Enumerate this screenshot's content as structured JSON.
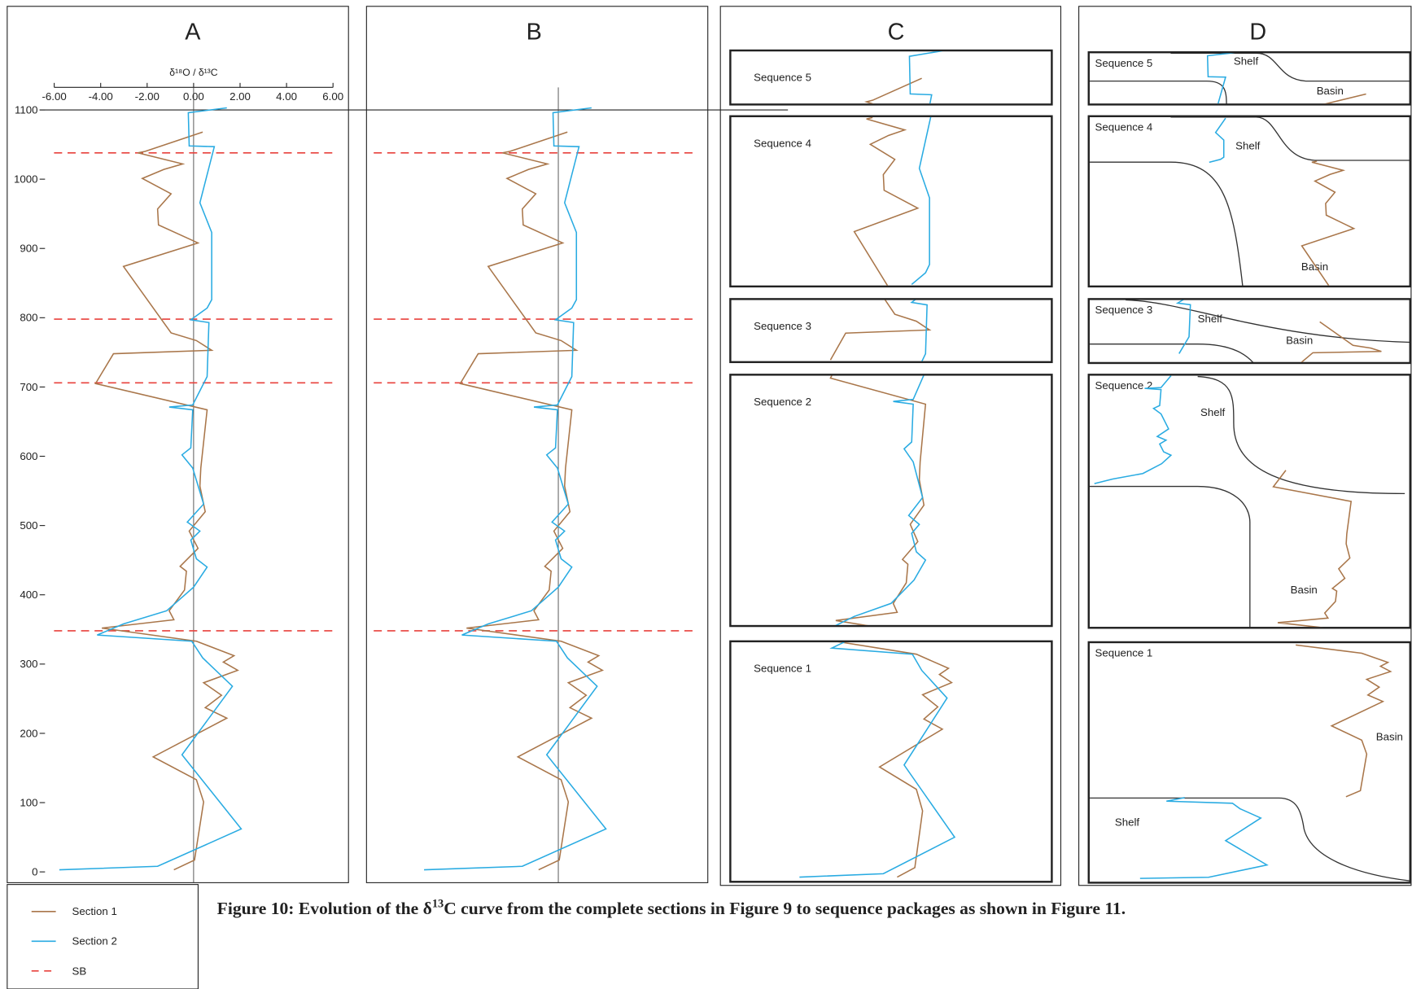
{
  "panels": [
    "A",
    "B",
    "C",
    "D"
  ],
  "chart_data": {
    "type": "line",
    "xlabel": "δ¹⁸O / δ¹³C",
    "xlim": [
      -6,
      6
    ],
    "xticks": [
      {
        "value": -6,
        "label": "-6.00"
      },
      {
        "value": -4,
        "label": "-4.00"
      },
      {
        "value": -2,
        "label": "-2.00"
      },
      {
        "value": 0,
        "label": "0.00"
      },
      {
        "value": 2,
        "label": "2.00"
      },
      {
        "value": 4,
        "label": "4.00"
      },
      {
        "value": 6,
        "label": "6.00"
      }
    ],
    "ylim": [
      0,
      1100
    ],
    "yticks": [
      0,
      100,
      200,
      300,
      400,
      500,
      600,
      700,
      800,
      900,
      1000,
      1100
    ],
    "series": [
      {
        "name": "Section 1",
        "color": "#a9764a",
        "x": [
          -0.85,
          0.04,
          0.43,
          0.12,
          -1.74,
          1.43,
          0.5,
          1.2,
          0.43,
          1.9,
          1.28,
          1.74,
          0.12,
          -3.95,
          -0.85,
          -1.05,
          -0.39,
          -0.31,
          -0.58,
          0.19,
          -0.19,
          0.5,
          0.27,
          0.31,
          0.58,
          -4.22,
          -3.45,
          0.78,
          0.12,
          -0.97,
          -3.02,
          0.19,
          -1.51,
          -1.55,
          -0.97,
          -2.21,
          -1.28,
          -0.47,
          -2.4,
          -2.09,
          0.39
        ],
        "values": [
          3,
          17,
          101,
          133,
          166,
          222,
          237,
          255,
          273,
          291,
          303,
          312,
          333,
          352,
          364,
          377,
          407,
          434,
          441,
          467,
          492,
          520,
          557,
          583,
          667,
          705,
          748,
          753,
          767,
          778,
          874,
          908,
          934,
          957,
          979,
          1001,
          1014,
          1022,
          1038,
          1040,
          1068
        ]
      },
      {
        "name": "Section 2",
        "color": "#29abe2",
        "x": [
          -5.78,
          -1.55,
          2.05,
          -0.5,
          1.67,
          0.39,
          -0.08,
          -4.15,
          -3.02,
          -1.16,
          0,
          0.58,
          0.12,
          -0.12,
          0.27,
          -0.27,
          0.43,
          -0.04,
          -0.5,
          -0.12,
          -0.04,
          -1.05,
          -0.04,
          0.58,
          0.66,
          -0.12,
          0.58,
          0.78,
          0.78,
          0.27,
          0.89,
          -0.19,
          -0.23,
          1.43
        ],
        "values": [
          3,
          8,
          62,
          169,
          268,
          309,
          333,
          342,
          358,
          377,
          411,
          440,
          452,
          479,
          492,
          505,
          531,
          583,
          602,
          612,
          667,
          671,
          674,
          715,
          793,
          797,
          814,
          826,
          923,
          966,
          1047,
          1048,
          1096,
          1103
        ]
      }
    ],
    "reference_lines": {
      "name": "SB",
      "color": "#e8413c",
      "values": [
        348,
        706,
        798,
        1038
      ]
    }
  },
  "sequences": [
    "Sequence 1",
    "Sequence 2",
    "Sequence 3",
    "Sequence 4",
    "Sequence 5"
  ],
  "shelf": "Shelf",
  "basin": "Basin",
  "caption": [
    "Figure 10: Evolution of the δ",
    "13",
    "C curve from the complete sections in Figure 9 to sequence packages as shown in Figure 11."
  ]
}
